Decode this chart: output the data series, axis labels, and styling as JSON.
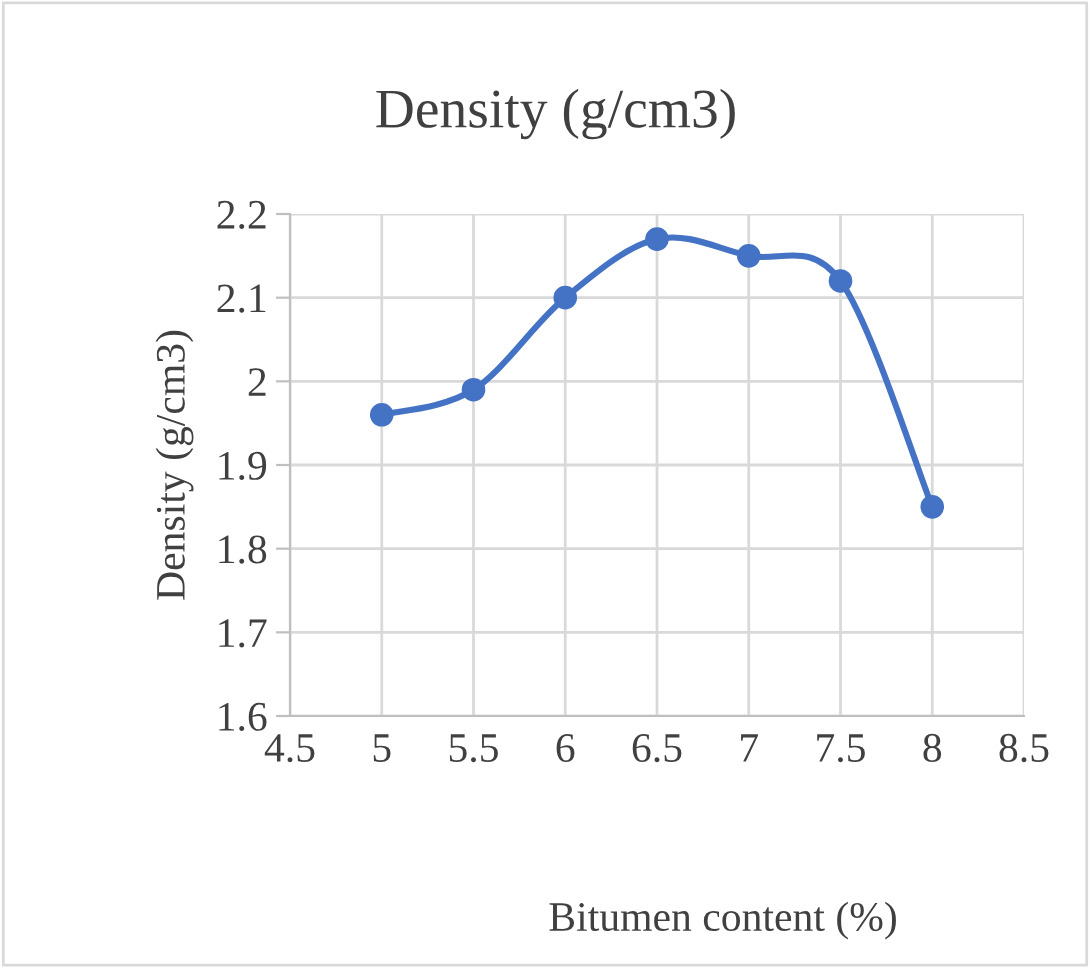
{
  "chart_data": {
    "type": "line",
    "title": "Density (g/cm3)",
    "xlabel": "Bitumen content (%)",
    "ylabel": "Density (g/cm3)",
    "x": [
      5,
      5.5,
      6,
      6.5,
      7,
      7.5,
      8
    ],
    "series": [
      {
        "color": "#4472c4",
        "values": [
          1.96,
          1.99,
          2.1,
          2.17,
          2.15,
          2.12,
          1.85
        ]
      }
    ],
    "xlim": [
      4.5,
      8.5
    ],
    "xticks": [
      4.5,
      5,
      5.5,
      6,
      6.5,
      7,
      7.5,
      8,
      8.5
    ],
    "ylim": [
      1.6,
      2.2
    ],
    "yticks": [
      1.6,
      1.7,
      1.8,
      1.9,
      2,
      2.1,
      2.2
    ],
    "grid": true,
    "marker": "circle",
    "line_style": "solid",
    "legend": false
  }
}
